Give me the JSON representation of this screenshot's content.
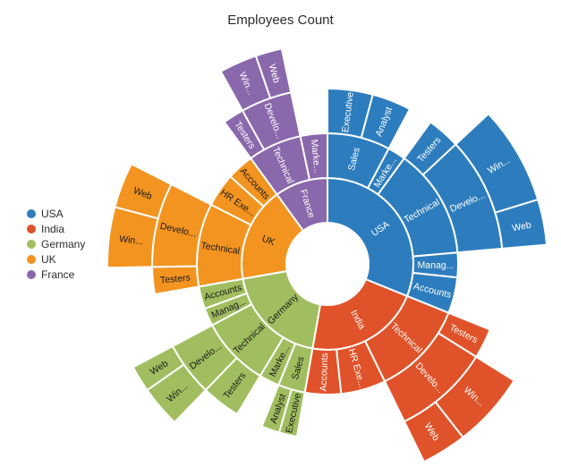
{
  "title": "Employees Count",
  "background": "#FFFFFF",
  "legend": {
    "position": "left",
    "items": [
      {
        "label": "USA",
        "color": "#2D7DBE"
      },
      {
        "label": "India",
        "color": "#E05229"
      },
      {
        "label": "Germany",
        "color": "#A0BE5F"
      },
      {
        "label": "UK",
        "color": "#F2941F"
      },
      {
        "label": "France",
        "color": "#8A68AC"
      }
    ]
  },
  "chart_data": {
    "type": "sunburst",
    "title": "Employees Count",
    "direction": "clockwise",
    "start_angle_deg": 0,
    "levels": 4,
    "value_note": "no numeric labels visible; values are angular spans in degrees estimated from the pixels (total = 360)",
    "nodes": [
      {
        "name": "USA",
        "label": "USA",
        "color": "#2D7DBE",
        "label_color": "#FFFFFF",
        "children": [
          {
            "name": "Sales",
            "label": "Sales",
            "children": [
              {
                "name": "Executive",
                "label": "Executive",
                "value": 15
              },
              {
                "name": "Analyst",
                "label": "Analyst",
                "value": 13
              }
            ]
          },
          {
            "name": "Marketing",
            "label": "Marke...",
            "value": 8
          },
          {
            "name": "Technical",
            "label": "Technical",
            "children": [
              {
                "name": "Testers",
                "label": "Testers",
                "value": 11
              },
              {
                "name": "Developers",
                "label": "Develo...",
                "children": [
                  {
                    "name": "Windows",
                    "label": "Win...",
                    "value": 26
                  },
                  {
                    "name": "Web",
                    "label": "Web",
                    "value": 12
                  }
                ]
              }
            ]
          },
          {
            "name": "Management",
            "label": "Manag...",
            "value": 11
          },
          {
            "name": "Accounts",
            "label": "Accounts",
            "value": 16
          }
        ]
      },
      {
        "name": "India",
        "label": "India",
        "color": "#E05229",
        "label_color": "#FFFFFF",
        "children": [
          {
            "name": "Technical",
            "label": "Technical",
            "children": [
              {
                "name": "Testers",
                "label": "Testers",
                "value": 10
              },
              {
                "name": "Developers",
                "label": "Develo...",
                "children": [
                  {
                    "name": "Windows",
                    "label": "Win...",
                    "value": 20
                  },
                  {
                    "name": "Web",
                    "label": "Web",
                    "value": 12
                  }
                ]
              }
            ]
          },
          {
            "name": "HR Executives",
            "label": "HR Exe...",
            "value": 20
          },
          {
            "name": "Accounts",
            "label": "Accounts",
            "value": 16
          }
        ]
      },
      {
        "name": "Germany",
        "label": "Germany",
        "color": "#A0BE5F",
        "label_color": "#1A1A1A",
        "children": [
          {
            "name": "Sales",
            "label": "Sales",
            "children": [
              {
                "name": "Executive",
                "label": "Executive",
                "value": 6
              },
              {
                "name": "Analyst",
                "label": "Analyst",
                "value": 6
              }
            ]
          },
          {
            "name": "Marketing",
            "label": "Marke...",
            "value": 9
          },
          {
            "name": "Technical",
            "label": "Technical",
            "children": [
              {
                "name": "Testers",
                "label": "Testers",
                "value": 13
              },
              {
                "name": "Developers",
                "label": "Develo...",
                "children": [
                  {
                    "name": "Windows",
                    "label": "Win...",
                    "value": 11
                  },
                  {
                    "name": "Web",
                    "label": "Web",
                    "value": 7
                  }
                ]
              }
            ]
          },
          {
            "name": "Management",
            "label": "Manag...",
            "value": 8
          },
          {
            "name": "Accounts",
            "label": "Accounts",
            "value": 10
          }
        ]
      },
      {
        "name": "UK",
        "label": "UK",
        "color": "#F2941F",
        "label_color": "#1A1A1A",
        "children": [
          {
            "name": "Technical",
            "label": "Technical",
            "children": [
              {
                "name": "Testers",
                "label": "Testers",
                "value": 9
              },
              {
                "name": "Developers",
                "label": "Develo...",
                "children": [
                  {
                    "name": "Windows",
                    "label": "Win...",
                    "value": 16
                  },
                  {
                    "name": "Web",
                    "label": "Web",
                    "value": 12
                  }
                ]
              }
            ]
          },
          {
            "name": "HR Executives",
            "label": "HR Exe...",
            "value": 15
          },
          {
            "name": "Accounts",
            "label": "Accounts",
            "value": 12
          }
        ]
      },
      {
        "name": "France",
        "label": "France",
        "color": "#8A68AC",
        "label_color": "#FFFFFF",
        "children": [
          {
            "name": "Technical",
            "label": "Technical",
            "children": [
              {
                "name": "Testers",
                "label": "Testers",
                "value": 7
              },
              {
                "name": "Developers",
                "label": "Develo...",
                "children": [
                  {
                    "name": "Windows",
                    "label": "Win...",
                    "value": 10
                  },
                  {
                    "name": "Web",
                    "label": "Web",
                    "value": 7
                  }
                ]
              }
            ]
          },
          {
            "name": "Marketing",
            "label": "Marke...",
            "value": 12
          }
        ]
      }
    ]
  }
}
